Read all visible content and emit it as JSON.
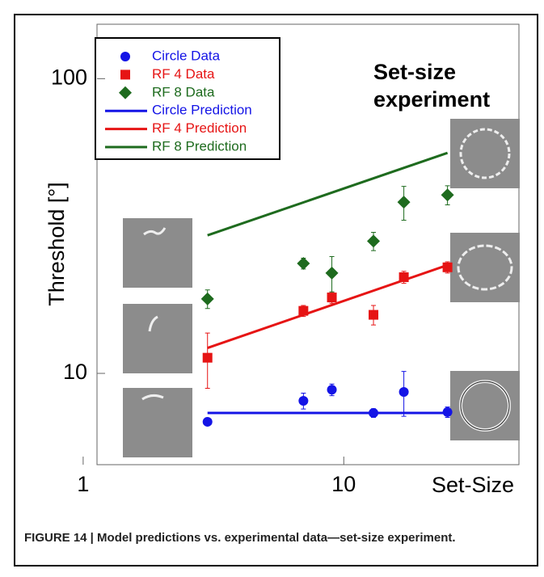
{
  "chart_data": {
    "type": "scatter",
    "title": "Set-size experiment",
    "caption": "FIGURE 14 | Model predictions vs. experimental data—set-size experiment.",
    "x_label": "Set-Size",
    "y_label": "Threshold [°]",
    "log_x": true,
    "log_y": true,
    "xlim": [
      1.13,
      47
    ],
    "ylim": [
      4.9,
      153
    ],
    "xticks": [
      1,
      10
    ],
    "yticks": [
      10,
      100
    ],
    "series": [
      {
        "name": "Circle Data",
        "color": "#1414e6",
        "marker": "circle",
        "x": [
          3,
          7,
          9,
          13,
          17,
          25
        ],
        "values": [
          6.85,
          8.07,
          8.8,
          7.34,
          8.65,
          7.39
        ],
        "errors": [
          0.0,
          0.5,
          0.4,
          0.25,
          1.5,
          0.3
        ]
      },
      {
        "name": "RF 4 Data",
        "color": "#e61414",
        "marker": "square",
        "x": [
          3,
          7,
          9,
          13,
          17,
          25
        ],
        "values": [
          11.3,
          16.3,
          18.1,
          15.8,
          21.2,
          22.9
        ],
        "errors": [
          2.4,
          0.7,
          0.8,
          1.2,
          1.0,
          1.0
        ]
      },
      {
        "name": "RF 8 Data",
        "color": "#1e6b1e",
        "marker": "diamond",
        "x": [
          3,
          7,
          9,
          13,
          17,
          25
        ],
        "values": [
          17.9,
          23.6,
          21.9,
          28.1,
          38.1,
          40.3
        ],
        "errors": [
          1.3,
          1.0,
          3.0,
          2.0,
          5.0,
          3.0
        ]
      },
      {
        "name": "Circle Prediction",
        "color": "#1414e6",
        "marker": "line",
        "x": [
          3,
          25
        ],
        "values": [
          7.34,
          7.34
        ]
      },
      {
        "name": "RF 4 Prediction",
        "color": "#e61414",
        "marker": "line",
        "x": [
          3,
          25
        ],
        "values": [
          12.2,
          23.3
        ]
      },
      {
        "name": "RF 8 Prediction",
        "color": "#1e6b1e",
        "marker": "line",
        "x": [
          3,
          25
        ],
        "values": [
          29.4,
          56.0
        ]
      }
    ]
  }
}
